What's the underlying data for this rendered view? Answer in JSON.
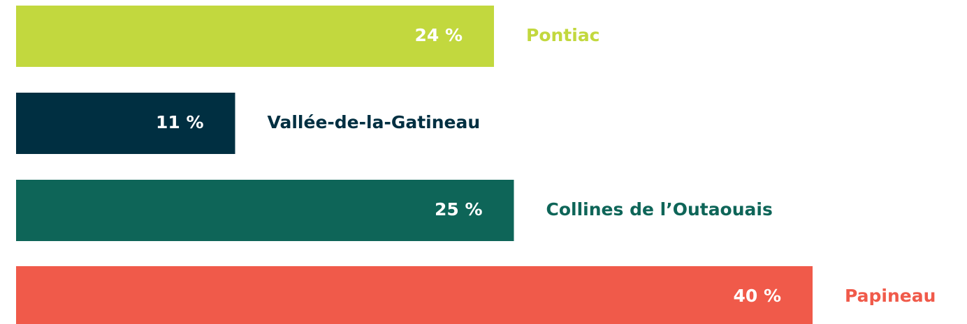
{
  "chart_data": {
    "type": "bar",
    "orientation": "horizontal",
    "categories": [
      "Pontiac",
      "Vallée-de-la-Gatineau",
      "Collines de l’Outaouais",
      "Papineau"
    ],
    "values": [
      24,
      11,
      25,
      40
    ],
    "value_labels": [
      "24 %",
      "11 %",
      "25 %",
      "40 %"
    ],
    "colors": [
      "#c2d83e",
      "#002f41",
      "#0e6558",
      "#f05a4a"
    ]
  }
}
